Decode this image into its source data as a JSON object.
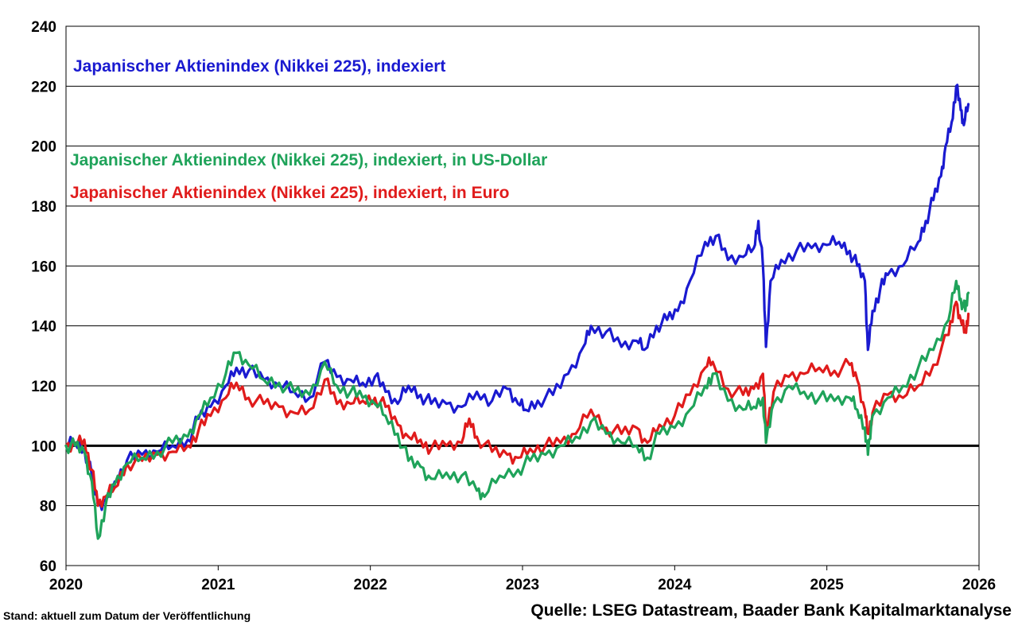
{
  "chart_data": {
    "type": "line",
    "ylim": [
      60,
      240
    ],
    "yticks": [
      60,
      80,
      100,
      120,
      140,
      160,
      180,
      200,
      220,
      240
    ],
    "xlim": [
      2020,
      2026
    ],
    "xticks": [
      "2020",
      "2021",
      "2022",
      "2023",
      "2024",
      "2025",
      "2026"
    ],
    "grid": true,
    "reference_line": 100,
    "legend_position": "top-left",
    "series": [
      {
        "name": "Japanischer Aktienindex (Nikkei 225), indexiert",
        "color": "#1a1ad0",
        "points": [
          [
            2020.0,
            100
          ],
          [
            2020.06,
            101
          ],
          [
            2020.12,
            99
          ],
          [
            2020.17,
            90
          ],
          [
            2020.21,
            80
          ],
          [
            2020.26,
            82
          ],
          [
            2020.32,
            88
          ],
          [
            2020.4,
            95
          ],
          [
            2020.5,
            97
          ],
          [
            2020.6,
            98
          ],
          [
            2020.7,
            100
          ],
          [
            2020.8,
            102
          ],
          [
            2020.87,
            109
          ],
          [
            2020.95,
            113
          ],
          [
            2021.05,
            120
          ],
          [
            2021.12,
            126
          ],
          [
            2021.2,
            125
          ],
          [
            2021.3,
            122
          ],
          [
            2021.4,
            120
          ],
          [
            2021.5,
            118
          ],
          [
            2021.6,
            116
          ],
          [
            2021.7,
            128
          ],
          [
            2021.78,
            123
          ],
          [
            2021.87,
            122
          ],
          [
            2021.95,
            121
          ],
          [
            2022.03,
            123
          ],
          [
            2022.1,
            118
          ],
          [
            2022.18,
            114
          ],
          [
            2022.25,
            120
          ],
          [
            2022.33,
            117
          ],
          [
            2022.4,
            114
          ],
          [
            2022.5,
            114
          ],
          [
            2022.6,
            113
          ],
          [
            2022.7,
            118
          ],
          [
            2022.8,
            115
          ],
          [
            2022.9,
            119
          ],
          [
            2022.97,
            114
          ],
          [
            2023.02,
            112
          ],
          [
            2023.1,
            115
          ],
          [
            2023.2,
            117
          ],
          [
            2023.3,
            124
          ],
          [
            2023.4,
            133
          ],
          [
            2023.45,
            140
          ],
          [
            2023.55,
            138
          ],
          [
            2023.65,
            133
          ],
          [
            2023.75,
            135
          ],
          [
            2023.8,
            132
          ],
          [
            2023.88,
            140
          ],
          [
            2023.95,
            142
          ],
          [
            2024.02,
            145
          ],
          [
            2024.1,
            155
          ],
          [
            2024.2,
            168
          ],
          [
            2024.27,
            170
          ],
          [
            2024.35,
            162
          ],
          [
            2024.45,
            163
          ],
          [
            2024.52,
            166
          ],
          [
            2024.55,
            175
          ],
          [
            2024.58,
            160
          ],
          [
            2024.6,
            133
          ],
          [
            2024.63,
            155
          ],
          [
            2024.7,
            162
          ],
          [
            2024.8,
            165
          ],
          [
            2024.9,
            166
          ],
          [
            2025.0,
            167
          ],
          [
            2025.08,
            168
          ],
          [
            2025.15,
            165
          ],
          [
            2025.2,
            160
          ],
          [
            2025.25,
            155
          ],
          [
            2025.27,
            132
          ],
          [
            2025.3,
            145
          ],
          [
            2025.35,
            152
          ],
          [
            2025.4,
            157
          ],
          [
            2025.5,
            160
          ],
          [
            2025.6,
            168
          ],
          [
            2025.65,
            175
          ],
          [
            2025.7,
            182
          ],
          [
            2025.75,
            190
          ],
          [
            2025.78,
            200
          ],
          [
            2025.82,
            208
          ],
          [
            2025.85,
            220
          ],
          [
            2025.88,
            212
          ],
          [
            2025.9,
            207
          ],
          [
            2025.93,
            214
          ]
        ]
      },
      {
        "name": "Japanischer Aktienindex (Nikkei 225), indexiert, in US-Dollar",
        "color": "#1fa35a",
        "points": [
          [
            2020.0,
            100
          ],
          [
            2020.06,
            100
          ],
          [
            2020.12,
            98
          ],
          [
            2020.17,
            88
          ],
          [
            2020.21,
            69
          ],
          [
            2020.26,
            80
          ],
          [
            2020.32,
            87
          ],
          [
            2020.4,
            94
          ],
          [
            2020.5,
            96
          ],
          [
            2020.6,
            98
          ],
          [
            2020.7,
            101
          ],
          [
            2020.8,
            103
          ],
          [
            2020.87,
            110
          ],
          [
            2020.95,
            116
          ],
          [
            2021.05,
            124
          ],
          [
            2021.12,
            131
          ],
          [
            2021.2,
            127
          ],
          [
            2021.3,
            122
          ],
          [
            2021.4,
            121
          ],
          [
            2021.5,
            118
          ],
          [
            2021.6,
            117
          ],
          [
            2021.7,
            128
          ],
          [
            2021.78,
            120
          ],
          [
            2021.87,
            118
          ],
          [
            2021.95,
            116
          ],
          [
            2022.03,
            114
          ],
          [
            2022.1,
            110
          ],
          [
            2022.18,
            104
          ],
          [
            2022.25,
            95
          ],
          [
            2022.33,
            93
          ],
          [
            2022.4,
            89
          ],
          [
            2022.5,
            91
          ],
          [
            2022.6,
            90
          ],
          [
            2022.7,
            85
          ],
          [
            2022.75,
            83
          ],
          [
            2022.85,
            90
          ],
          [
            2022.97,
            92
          ],
          [
            2023.05,
            95
          ],
          [
            2023.15,
            97
          ],
          [
            2023.25,
            100
          ],
          [
            2023.35,
            103
          ],
          [
            2023.45,
            108
          ],
          [
            2023.55,
            104
          ],
          [
            2023.65,
            101
          ],
          [
            2023.75,
            100
          ],
          [
            2023.82,
            96
          ],
          [
            2023.9,
            104
          ],
          [
            2024.0,
            106
          ],
          [
            2024.1,
            112
          ],
          [
            2024.2,
            120
          ],
          [
            2024.25,
            124
          ],
          [
            2024.35,
            115
          ],
          [
            2024.45,
            112
          ],
          [
            2024.52,
            113
          ],
          [
            2024.58,
            116
          ],
          [
            2024.6,
            101
          ],
          [
            2024.65,
            114
          ],
          [
            2024.75,
            120
          ],
          [
            2024.85,
            118
          ],
          [
            2024.95,
            116
          ],
          [
            2025.05,
            115
          ],
          [
            2025.15,
            116
          ],
          [
            2025.2,
            112
          ],
          [
            2025.25,
            106
          ],
          [
            2025.27,
            97
          ],
          [
            2025.3,
            110
          ],
          [
            2025.4,
            116
          ],
          [
            2025.5,
            120
          ],
          [
            2025.6,
            126
          ],
          [
            2025.7,
            132
          ],
          [
            2025.8,
            142
          ],
          [
            2025.85,
            155
          ],
          [
            2025.88,
            149
          ],
          [
            2025.91,
            145
          ],
          [
            2025.93,
            151
          ]
        ]
      },
      {
        "name": "Japanischer Aktienindex (Nikkei 225), indexiert, in Euro",
        "color": "#e01b1b",
        "points": [
          [
            2020.0,
            100
          ],
          [
            2020.06,
            101
          ],
          [
            2020.12,
            102
          ],
          [
            2020.17,
            92
          ],
          [
            2020.21,
            80
          ],
          [
            2020.26,
            83
          ],
          [
            2020.32,
            86
          ],
          [
            2020.4,
            94
          ],
          [
            2020.5,
            95
          ],
          [
            2020.6,
            97
          ],
          [
            2020.7,
            98
          ],
          [
            2020.8,
            100
          ],
          [
            2020.87,
            105
          ],
          [
            2020.95,
            110
          ],
          [
            2021.05,
            116
          ],
          [
            2021.12,
            121
          ],
          [
            2021.2,
            116
          ],
          [
            2021.3,
            114
          ],
          [
            2021.4,
            113
          ],
          [
            2021.5,
            111
          ],
          [
            2021.6,
            112
          ],
          [
            2021.7,
            122
          ],
          [
            2021.78,
            114
          ],
          [
            2021.87,
            114
          ],
          [
            2021.95,
            115
          ],
          [
            2022.03,
            116
          ],
          [
            2022.1,
            113
          ],
          [
            2022.18,
            107
          ],
          [
            2022.25,
            103
          ],
          [
            2022.33,
            102
          ],
          [
            2022.4,
            99
          ],
          [
            2022.5,
            100
          ],
          [
            2022.6,
            101
          ],
          [
            2022.65,
            109
          ],
          [
            2022.7,
            103
          ],
          [
            2022.8,
            98
          ],
          [
            2022.9,
            97
          ],
          [
            2022.97,
            96
          ],
          [
            2023.05,
            99
          ],
          [
            2023.15,
            100
          ],
          [
            2023.25,
            101
          ],
          [
            2023.35,
            104
          ],
          [
            2023.45,
            112
          ],
          [
            2023.55,
            106
          ],
          [
            2023.65,
            104
          ],
          [
            2023.75,
            106
          ],
          [
            2023.82,
            101
          ],
          [
            2023.9,
            107
          ],
          [
            2024.0,
            110
          ],
          [
            2024.1,
            117
          ],
          [
            2024.2,
            126
          ],
          [
            2024.25,
            128
          ],
          [
            2024.35,
            119
          ],
          [
            2024.45,
            117
          ],
          [
            2024.52,
            119
          ],
          [
            2024.58,
            124
          ],
          [
            2024.6,
            106
          ],
          [
            2024.65,
            118
          ],
          [
            2024.75,
            123
          ],
          [
            2024.85,
            124
          ],
          [
            2024.95,
            126
          ],
          [
            2025.05,
            125
          ],
          [
            2025.15,
            127
          ],
          [
            2025.2,
            122
          ],
          [
            2025.25,
            112
          ],
          [
            2025.27,
            104
          ],
          [
            2025.3,
            111
          ],
          [
            2025.4,
            117
          ],
          [
            2025.5,
            116
          ],
          [
            2025.6,
            120
          ],
          [
            2025.7,
            127
          ],
          [
            2025.8,
            137
          ],
          [
            2025.85,
            148
          ],
          [
            2025.88,
            142
          ],
          [
            2025.91,
            138
          ],
          [
            2025.93,
            144
          ]
        ]
      }
    ]
  },
  "footer": {
    "left": "Stand: aktuell zum Datum der Veröffentlichung",
    "right": "Quelle: LSEG Datastream, Baader Bank Kapitalmarktanalyse"
  }
}
